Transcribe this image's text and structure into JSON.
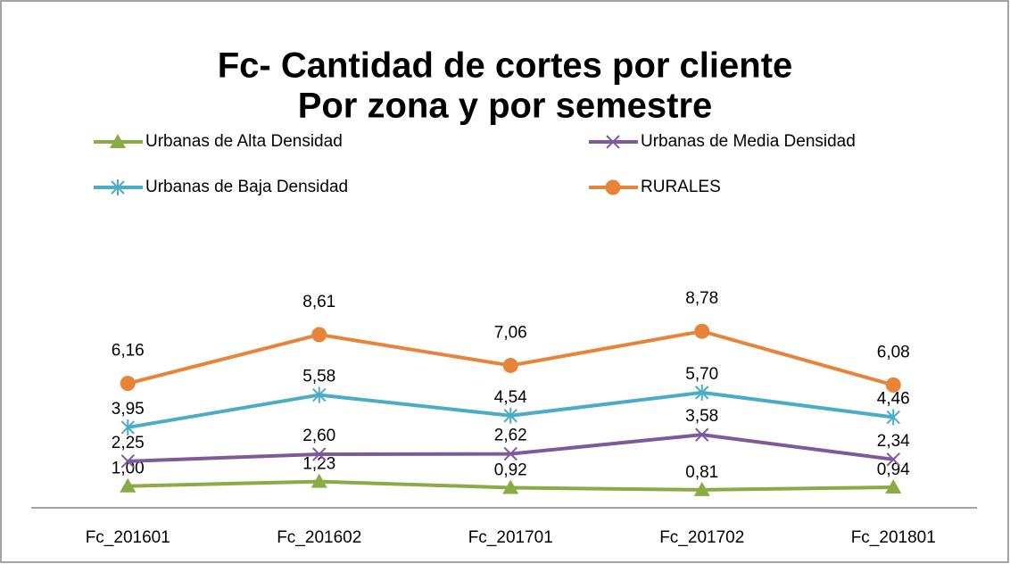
{
  "chart_data": {
    "type": "line",
    "title": [
      "Fc- Cantidad de cortes por cliente",
      "Por zona y por semestre"
    ],
    "categories": [
      "Fc_201601",
      "Fc_201602",
      "Fc_201701",
      "Fc_201702",
      "Fc_201801"
    ],
    "series": [
      {
        "name": "Urbanas de Alta Densidad",
        "color": "#8aac44",
        "marker": "triangle",
        "values": [
          1.0,
          1.23,
          0.92,
          0.81,
          0.94
        ],
        "value_labels": [
          "1,00",
          "1,23",
          "0,92",
          "0,81",
          "0,94"
        ]
      },
      {
        "name": "Urbanas de Media Densidad",
        "color": "#7e5a9b",
        "marker": "x",
        "values": [
          2.25,
          2.6,
          2.62,
          3.58,
          2.34
        ],
        "value_labels": [
          "2,25",
          "2,60",
          "2,62",
          "3,58",
          "2,34"
        ]
      },
      {
        "name": "Urbanas de Baja Densidad",
        "color": "#4bacc6",
        "marker": "star",
        "values": [
          3.95,
          5.58,
          4.54,
          5.7,
          4.46
        ],
        "value_labels": [
          "3,95",
          "5,58",
          "4,54",
          "5,70",
          "4,46"
        ]
      },
      {
        "name": "RURALES",
        "color": "#e8833a",
        "marker": "circle",
        "values": [
          6.16,
          8.61,
          7.06,
          8.78,
          6.08
        ],
        "value_labels": [
          "6,16",
          "8,61",
          "7,06",
          "8,78",
          "6,08"
        ]
      }
    ],
    "ylim": [
      0,
      10
    ]
  }
}
